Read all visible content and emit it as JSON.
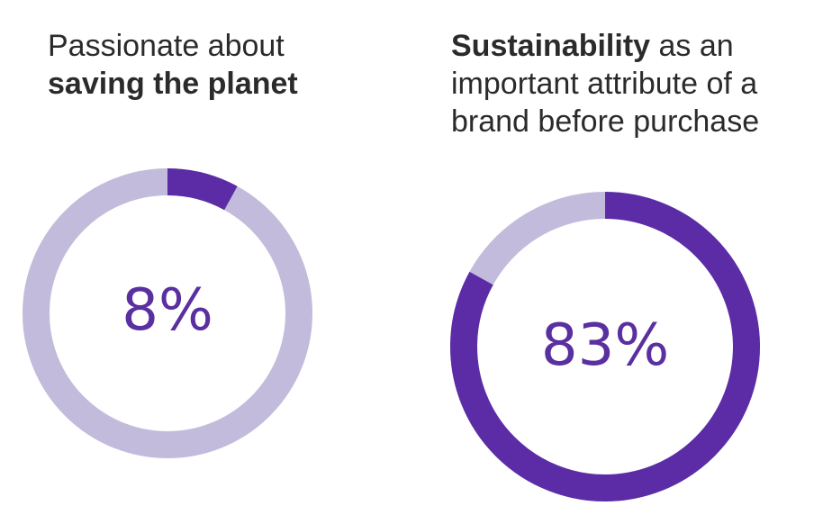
{
  "chart_data": [
    {
      "type": "pie",
      "title_parts": [
        {
          "text": "Passionate about",
          "bold": false,
          "line": 1
        },
        {
          "text": "saving the planet",
          "bold": true,
          "line": 2
        }
      ],
      "value": 8,
      "value_label": "8%",
      "max": 100,
      "colors": {
        "value": "#5b2ca6",
        "remainder": "#c3bbdb"
      }
    },
    {
      "type": "pie",
      "title_parts": [
        {
          "text": "Sustainability",
          "bold": true,
          "line": 1
        },
        {
          "text": " as an",
          "bold": false,
          "line": 1
        },
        {
          "text": "important attribute of a",
          "bold": false,
          "line": 2
        },
        {
          "text": "brand before purchase",
          "bold": false,
          "line": 3
        }
      ],
      "value": 83,
      "value_label": "83%",
      "max": 100,
      "colors": {
        "value": "#5b2ca6",
        "remainder": "#c3bbdb"
      }
    }
  ]
}
